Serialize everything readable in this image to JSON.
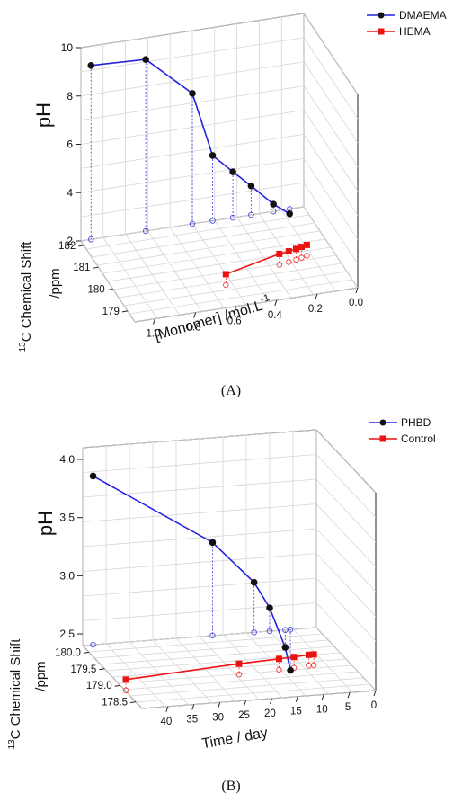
{
  "chart_data": [
    {
      "type": "line",
      "panel_label": "(A)",
      "xlabel": "[Monomer] /mol.L",
      "xlabel_sup": "-1",
      "ylabel": "pH",
      "zlabel_sup": "13",
      "zlabel": "C Chemical Shift",
      "zlabel_unit": "/ppm",
      "x_ticks": [
        "1.0",
        "0.8",
        "0.6",
        "0.4",
        "0.2",
        "0.0"
      ],
      "y_ticks": [
        "2",
        "4",
        "6",
        "8",
        "10"
      ],
      "z_ticks": [
        "179",
        "180",
        "181",
        "182"
      ],
      "xlim": [
        0,
        1.1
      ],
      "ylim": [
        2,
        10
      ],
      "zlim": [
        178.5,
        182.2
      ],
      "legend_position": "top-right",
      "grid": true,
      "series": [
        {
          "name": "DMAEMA",
          "color": "#2222dd",
          "marker": "circle",
          "x": [
            1.05,
            0.78,
            0.55,
            0.45,
            0.35,
            0.26,
            0.15,
            0.07
          ],
          "y": [
            9.2,
            9.1,
            7.4,
            4.7,
            3.9,
            3.2,
            2.3,
            1.8
          ]
        },
        {
          "name": "HEMA",
          "color": "#ee1111",
          "marker": "square",
          "x": [
            0.55,
            0.25,
            0.2,
            0.16,
            0.13,
            0.1
          ],
          "z": [
            179.9,
            180.4,
            180.45,
            180.5,
            180.55,
            180.6
          ]
        }
      ]
    },
    {
      "type": "line",
      "panel_label": "(B)",
      "xlabel": "Time / day",
      "ylabel": "pH",
      "zlabel_sup": "13",
      "zlabel": "C Chemical Shift",
      "zlabel_unit": "/ppm",
      "x_ticks": [
        "40",
        "35",
        "30",
        "25",
        "20",
        "15",
        "10",
        "5",
        "0"
      ],
      "y_ticks": [
        "2.5",
        "3.0",
        "3.5",
        "4.0"
      ],
      "z_ticks": [
        "178.5",
        "179.0",
        "179.5",
        "180.0"
      ],
      "xlim": [
        0,
        45
      ],
      "ylim": [
        2.4,
        4.1
      ],
      "zlim": [
        178.3,
        180.2
      ],
      "legend_position": "top-right",
      "grid": true,
      "series": [
        {
          "name": "PHBD",
          "color": "#2222dd",
          "marker": "circle",
          "x": [
            43,
            20,
            12,
            9,
            6,
            5
          ],
          "y": [
            3.85,
            3.2,
            2.83,
            2.6,
            2.25,
            2.05
          ]
        },
        {
          "name": "Control",
          "color": "#ee1111",
          "marker": "square",
          "x": [
            43,
            20,
            12,
            9,
            6,
            5
          ],
          "z": [
            179.15,
            179.35,
            179.4,
            179.42,
            179.45,
            179.45
          ]
        }
      ]
    }
  ]
}
